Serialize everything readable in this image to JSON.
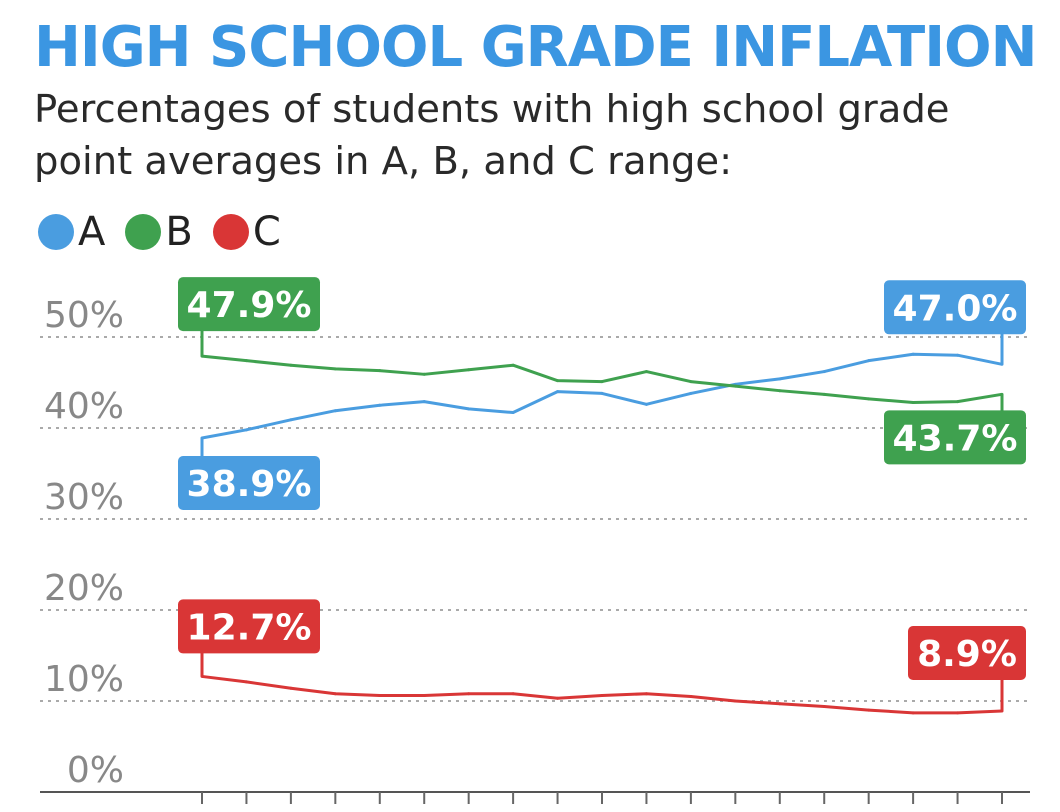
{
  "title": "HIGH SCHOOL GRADE INFLATION",
  "subtitle": "Percentages of students with high school grade point averages in A, B, and C range:",
  "colors": {
    "title": "#3b96e2",
    "A": "#4a9de0",
    "B": "#3fa14f",
    "C": "#d93636",
    "grid": "#aaaaaa",
    "tick_label": "#888888"
  },
  "legend": [
    {
      "label": "A",
      "color": "#4a9de0"
    },
    {
      "label": "B",
      "color": "#3fa14f"
    },
    {
      "label": "C",
      "color": "#d93636"
    }
  ],
  "chart_data": {
    "type": "line",
    "title": "HIGH SCHOOL GRADE INFLATION",
    "xlabel": "",
    "ylabel": "",
    "ylim": [
      0,
      52
    ],
    "yticks": [
      0,
      10,
      20,
      30,
      40,
      50
    ],
    "ytick_labels": [
      "0%",
      "10%",
      "20%",
      "30%",
      "40%",
      "50%"
    ],
    "x": [
      0,
      1,
      2,
      3,
      4,
      5,
      6,
      7,
      8,
      9,
      10,
      11,
      12,
      13,
      14,
      15,
      16,
      17,
      18
    ],
    "grid": true,
    "legend_position": "top-left",
    "series": [
      {
        "name": "A",
        "color": "#4a9de0",
        "values": [
          38.9,
          39.8,
          40.9,
          41.9,
          42.5,
          42.9,
          42.1,
          41.7,
          44.0,
          43.8,
          42.6,
          43.8,
          44.8,
          45.4,
          46.2,
          47.4,
          48.1,
          48.0,
          47.0
        ],
        "labels": [
          {
            "index": 0,
            "text": "38.9%"
          },
          {
            "index": 18,
            "text": "47.0%"
          }
        ]
      },
      {
        "name": "B",
        "color": "#3fa14f",
        "values": [
          47.9,
          47.4,
          46.9,
          46.5,
          46.3,
          45.9,
          46.4,
          46.9,
          45.2,
          45.1,
          46.2,
          45.1,
          44.6,
          44.1,
          43.7,
          43.2,
          42.8,
          42.9,
          43.7
        ],
        "labels": [
          {
            "index": 0,
            "text": "47.9%"
          },
          {
            "index": 18,
            "text": "43.7%"
          }
        ]
      },
      {
        "name": "C",
        "color": "#d93636",
        "values": [
          12.7,
          12.1,
          11.4,
          10.8,
          10.6,
          10.6,
          10.8,
          10.8,
          10.3,
          10.6,
          10.8,
          10.5,
          10.0,
          9.7,
          9.4,
          9.0,
          8.7,
          8.7,
          8.9
        ],
        "labels": [
          {
            "index": 0,
            "text": "12.7%"
          },
          {
            "index": 18,
            "text": "8.9%"
          }
        ]
      }
    ]
  }
}
